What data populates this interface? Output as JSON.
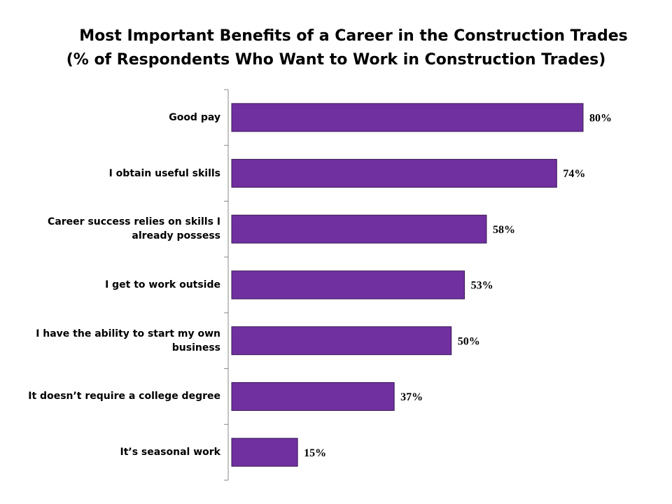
{
  "chart_data": {
    "type": "bar",
    "title": "Most Important Benefits of a Career in the Construction Trades",
    "subtitle": "(% of Respondents Who Want to Work in Construction Trades)",
    "categories": [
      "Good pay",
      "I obtain useful skills",
      "Career success relies on skills I already possess",
      "I get to work outside",
      "I have the ability to start my own business",
      "It doesn’t require a college degree",
      "It’s seasonal work"
    ],
    "values": [
      80,
      74,
      58,
      53,
      50,
      37,
      15
    ],
    "value_labels": [
      "80%",
      "74%",
      "58%",
      "53%",
      "50%",
      "37%",
      "15%"
    ],
    "color": "#7030a0"
  }
}
